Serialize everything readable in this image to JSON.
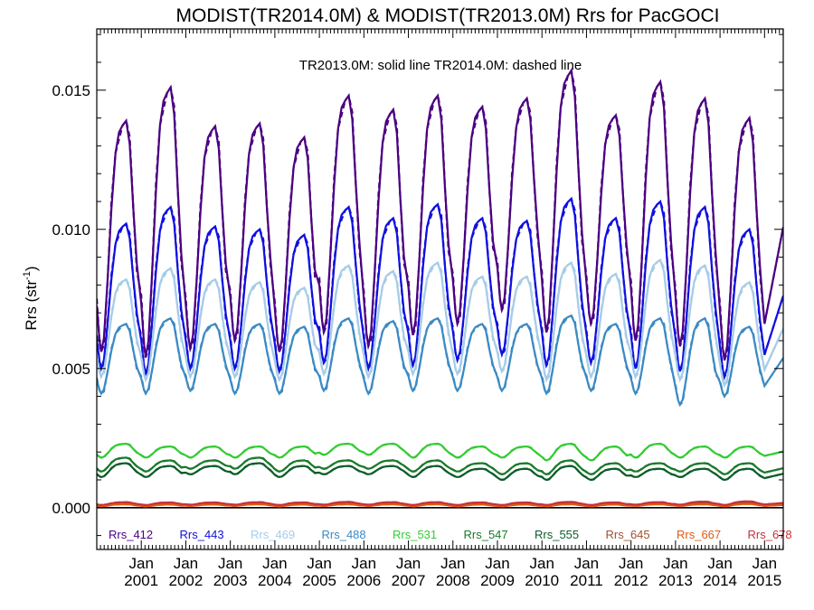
{
  "chart_data": {
    "type": "line",
    "title": "MODIST(TR2014.0M) & MODIST(TR2013.0M)  Rrs for PacGOCI",
    "annotation": "TR2013.0M: solid line   TR2014.0M: dashed line",
    "ylabel_main": "Rrs (str",
    "ylabel_sup": "-1",
    "ylabel_tail": ")",
    "ylim": [
      -0.0015,
      0.0172
    ],
    "xlim": [
      2000.0,
      2015.42
    ],
    "yticks": [
      {
        "value": 0.0,
        "label": "0.000"
      },
      {
        "value": 0.005,
        "label": "0.005"
      },
      {
        "value": 0.01,
        "label": "0.010"
      },
      {
        "value": 0.015,
        "label": "0.015"
      }
    ],
    "xticks": [
      {
        "value": 2001,
        "line1": "Jan",
        "line2": "2001"
      },
      {
        "value": 2002,
        "line1": "Jan",
        "line2": "2002"
      },
      {
        "value": 2003,
        "line1": "Jan",
        "line2": "2003"
      },
      {
        "value": 2004,
        "line1": "Jan",
        "line2": "2004"
      },
      {
        "value": 2005,
        "line1": "Jan",
        "line2": "2005"
      },
      {
        "value": 2006,
        "line1": "Jan",
        "line2": "2006"
      },
      {
        "value": 2007,
        "line1": "Jan",
        "line2": "2007"
      },
      {
        "value": 2008,
        "line1": "Jan",
        "line2": "2008"
      },
      {
        "value": 2009,
        "line1": "Jan",
        "line2": "2009"
      },
      {
        "value": 2010,
        "line1": "Jan",
        "line2": "2010"
      },
      {
        "value": 2011,
        "line1": "Jan",
        "line2": "2011"
      },
      {
        "value": 2012,
        "line1": "Jan",
        "line2": "2012"
      },
      {
        "value": 2013,
        "line1": "Jan",
        "line2": "2013"
      },
      {
        "value": 2014,
        "line1": "Jan",
        "line2": "2014"
      },
      {
        "value": 2015,
        "line1": "Jan",
        "line2": "2015"
      }
    ],
    "years": [
      2001,
      2002,
      2003,
      2004,
      2005,
      2006,
      2007,
      2008,
      2009,
      2010,
      2011,
      2012,
      2013,
      2014,
      2015
    ],
    "series": [
      {
        "name": "Rrs_412",
        "color": "#4b0082",
        "peaks": [
          0.0139,
          0.0151,
          0.0137,
          0.0138,
          0.0133,
          0.0148,
          0.0143,
          0.0148,
          0.0144,
          0.0147,
          0.0157,
          0.0141,
          0.0153,
          0.0147,
          0.014
        ],
        "troughs": [
          0.0056,
          0.0054,
          0.0057,
          0.006,
          0.0056,
          0.0063,
          0.0058,
          0.0062,
          0.0066,
          0.0071,
          0.0063,
          0.0066,
          0.006,
          0.0058,
          0.0053
        ]
      },
      {
        "name": "Rrs_443",
        "color": "#1010e0",
        "peaks": [
          0.0102,
          0.0108,
          0.0101,
          0.01,
          0.0098,
          0.0108,
          0.0104,
          0.0109,
          0.0104,
          0.0103,
          0.0111,
          0.0104,
          0.011,
          0.0108,
          0.01
        ],
        "troughs": [
          0.005,
          0.0048,
          0.005,
          0.005,
          0.0049,
          0.0052,
          0.005,
          0.0051,
          0.0053,
          0.0055,
          0.0051,
          0.0052,
          0.005,
          0.0049,
          0.0047
        ]
      },
      {
        "name": "Rrs_469",
        "color": "#a6cce8",
        "peaks": [
          0.0082,
          0.0086,
          0.0082,
          0.0081,
          0.0079,
          0.0087,
          0.0085,
          0.0088,
          0.0083,
          0.0083,
          0.0088,
          0.0084,
          0.0089,
          0.0087,
          0.0081
        ],
        "troughs": [
          0.0047,
          0.0046,
          0.0047,
          0.0047,
          0.0046,
          0.0048,
          0.0047,
          0.0048,
          0.0048,
          0.0049,
          0.0046,
          0.0047,
          0.0047,
          0.0046,
          0.0044
        ]
      },
      {
        "name": "Rrs_488",
        "color": "#3b8ac4",
        "peaks": [
          0.0066,
          0.0068,
          0.0066,
          0.0066,
          0.0065,
          0.0068,
          0.0067,
          0.0068,
          0.0066,
          0.0066,
          0.0069,
          0.0066,
          0.0068,
          0.0068,
          0.0065
        ],
        "troughs": [
          0.0041,
          0.0041,
          0.0042,
          0.0041,
          0.0041,
          0.0042,
          0.0041,
          0.0042,
          0.0042,
          0.0042,
          0.0041,
          0.0042,
          0.0041,
          0.0037,
          0.004
        ]
      },
      {
        "name": "Rrs_531",
        "color": "#33cc33",
        "peaks": [
          0.0023,
          0.0022,
          0.0022,
          0.0022,
          0.0022,
          0.0023,
          0.0023,
          0.0023,
          0.0022,
          0.0022,
          0.0023,
          0.0022,
          0.0023,
          0.0022,
          0.0022
        ],
        "troughs": [
          0.0018,
          0.0018,
          0.0018,
          0.0018,
          0.0018,
          0.0019,
          0.0019,
          0.0018,
          0.0018,
          0.0018,
          0.0017,
          0.0017,
          0.0018,
          0.0018,
          0.0018
        ]
      },
      {
        "name": "Rrs_547",
        "color": "#1a7a2a",
        "peaks": [
          0.0018,
          0.0017,
          0.0017,
          0.0018,
          0.0017,
          0.0017,
          0.0017,
          0.0017,
          0.0016,
          0.0016,
          0.0017,
          0.0016,
          0.0016,
          0.0016,
          0.0016
        ],
        "troughs": [
          0.0013,
          0.0013,
          0.0014,
          0.0014,
          0.0013,
          0.0014,
          0.0014,
          0.0013,
          0.0013,
          0.0012,
          0.0012,
          0.0012,
          0.0013,
          0.0013,
          0.0012
        ]
      },
      {
        "name": "Rrs_555",
        "color": "#0d5c2a",
        "peaks": [
          0.0016,
          0.0015,
          0.0015,
          0.0016,
          0.0015,
          0.0015,
          0.0015,
          0.0015,
          0.0014,
          0.0014,
          0.0015,
          0.0014,
          0.0014,
          0.0014,
          0.0014
        ],
        "troughs": [
          0.0011,
          0.0011,
          0.0012,
          0.0012,
          0.0011,
          0.0012,
          0.0012,
          0.0011,
          0.0011,
          0.001,
          0.001,
          0.001,
          0.0011,
          0.0011,
          0.001
        ]
      },
      {
        "name": "Rrs_645",
        "color": "#a0522d",
        "peaks": [
          0.00018,
          0.00016,
          0.00016,
          0.00017,
          0.00016,
          0.00018,
          0.00017,
          0.00017,
          0.00016,
          0.00016,
          0.00018,
          0.00016,
          0.00017,
          0.00018,
          0.00019
        ],
        "troughs": [
          8e-05,
          8e-05,
          9e-05,
          9e-05,
          8e-05,
          9e-05,
          9e-05,
          8e-05,
          8e-05,
          8e-05,
          8e-05,
          8e-05,
          9e-05,
          9e-05,
          8e-05
        ]
      },
      {
        "name": "Rrs_667",
        "color": "#e05a10",
        "peaks": [
          0.00012,
          0.00011,
          0.00011,
          0.00012,
          0.00011,
          0.00012,
          0.00012,
          0.00012,
          0.00011,
          0.00011,
          0.00012,
          0.00011,
          0.00012,
          0.00012,
          0.00013
        ],
        "troughs": [
          5e-05,
          5e-05,
          6e-05,
          6e-05,
          5e-05,
          6e-05,
          6e-05,
          5e-05,
          5e-05,
          5e-05,
          5e-05,
          5e-05,
          6e-05,
          6e-05,
          5e-05
        ]
      },
      {
        "name": "Rrs_678",
        "color": "#c8303a",
        "peaks": [
          0.0002,
          0.00019,
          0.00019,
          0.0002,
          0.00019,
          0.00021,
          0.0002,
          0.0002,
          0.00019,
          0.00019,
          0.00021,
          0.00019,
          0.0002,
          0.00022,
          0.00023
        ],
        "troughs": [
          0.0001,
          0.0001,
          0.00011,
          0.00011,
          0.0001,
          0.00011,
          0.00011,
          0.0001,
          0.0001,
          0.0001,
          0.0001,
          0.0001,
          0.00011,
          0.00011,
          0.0001
        ]
      }
    ],
    "grid": false,
    "legend_placement": "bottom, inside plot",
    "zero_line": true
  }
}
